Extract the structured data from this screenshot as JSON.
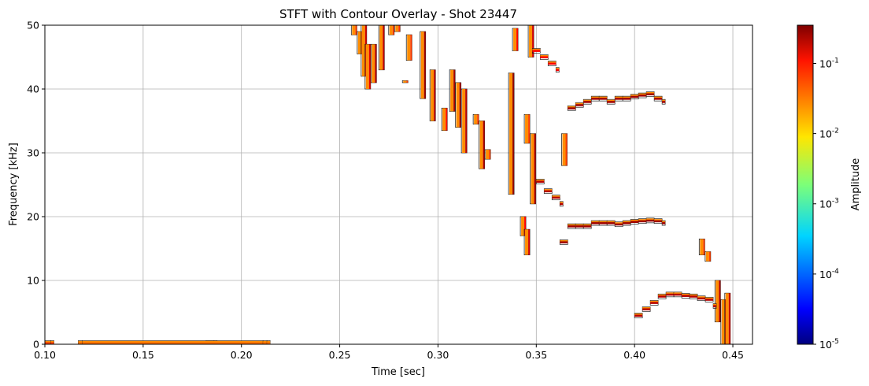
{
  "chart_data": {
    "type": "heatmap",
    "title": "STFT with Contour Overlay - Shot 23447",
    "xlabel": "Time [sec]",
    "ylabel": "Frequency [kHz]",
    "xlim": [
      0.1,
      0.46
    ],
    "ylim": [
      0,
      50
    ],
    "x_ticks": [
      0.1,
      0.15,
      0.2,
      0.25,
      0.3,
      0.35,
      0.4,
      0.45
    ],
    "x_tick_labels": [
      "0.10",
      "0.15",
      "0.20",
      "0.25",
      "0.30",
      "0.35",
      "0.40",
      "0.45"
    ],
    "y_ticks": [
      0,
      10,
      20,
      30,
      40,
      50
    ],
    "y_tick_labels": [
      "0",
      "10",
      "20",
      "30",
      "40",
      "50"
    ],
    "grid": true,
    "colormap": "jet",
    "color_scale": "log",
    "colorbar": {
      "label": "Amplitude",
      "range": [
        1e-05,
        0.35
      ],
      "ticks": [
        {
          "mantissa": "10",
          "exponent": "-1",
          "value": 0.1
        },
        {
          "mantissa": "10",
          "exponent": "-2",
          "value": 0.01
        },
        {
          "mantissa": "10",
          "exponent": "-3",
          "value": 0.001
        },
        {
          "mantissa": "10",
          "exponent": "-4",
          "value": 0.0001
        },
        {
          "mantissa": "10",
          "exponent": "-5",
          "value": 1e-05
        }
      ]
    },
    "features": [
      {
        "kind": "vertical",
        "t": 0.2575,
        "f0": 48.5,
        "f1": 50,
        "amp": 0.05
      },
      {
        "kind": "vertical",
        "t": 0.2605,
        "f0": 45.5,
        "f1": 49,
        "amp": 0.04
      },
      {
        "kind": "vertical",
        "t": 0.2625,
        "f0": 42,
        "f1": 50,
        "amp": 0.15
      },
      {
        "kind": "vertical",
        "t": 0.2645,
        "f0": 40,
        "f1": 47,
        "amp": 0.12
      },
      {
        "kind": "vertical",
        "t": 0.2675,
        "f0": 41,
        "f1": 47,
        "amp": 0.2
      },
      {
        "kind": "vertical",
        "t": 0.2715,
        "f0": 43,
        "f1": 50,
        "amp": 0.18
      },
      {
        "kind": "vertical",
        "t": 0.2765,
        "f0": 48.5,
        "f1": 50,
        "amp": 0.05
      },
      {
        "kind": "vertical",
        "t": 0.2795,
        "f0": 49,
        "f1": 50,
        "amp": 0.06
      },
      {
        "kind": "vertical",
        "t": 0.2835,
        "f0": 41,
        "f1": 41.3,
        "amp": 0.05
      },
      {
        "kind": "vertical",
        "t": 0.2855,
        "f0": 44.5,
        "f1": 48.5,
        "amp": 0.05
      },
      {
        "kind": "vertical",
        "t": 0.2925,
        "f0": 38.5,
        "f1": 49,
        "amp": 0.25
      },
      {
        "kind": "vertical",
        "t": 0.2975,
        "f0": 35,
        "f1": 43,
        "amp": 0.2
      },
      {
        "kind": "vertical",
        "t": 0.3035,
        "f0": 33.5,
        "f1": 37,
        "amp": 0.08
      },
      {
        "kind": "vertical",
        "t": 0.3075,
        "f0": 36.5,
        "f1": 43,
        "amp": 0.25
      },
      {
        "kind": "vertical",
        "t": 0.3105,
        "f0": 34,
        "f1": 41,
        "amp": 0.22
      },
      {
        "kind": "vertical",
        "t": 0.3135,
        "f0": 30,
        "f1": 40,
        "amp": 0.2
      },
      {
        "kind": "vertical",
        "t": 0.3195,
        "f0": 34.5,
        "f1": 36,
        "amp": 0.05
      },
      {
        "kind": "vertical",
        "t": 0.3225,
        "f0": 27.5,
        "f1": 35,
        "amp": 0.2
      },
      {
        "kind": "vertical",
        "t": 0.3255,
        "f0": 29,
        "f1": 30.5,
        "amp": 0.05
      },
      {
        "kind": "vertical",
        "t": 0.3375,
        "f0": 23.5,
        "f1": 42.5,
        "amp": 0.3
      },
      {
        "kind": "vertical",
        "t": 0.3395,
        "f0": 46,
        "f1": 49.5,
        "amp": 0.1
      },
      {
        "kind": "vertical",
        "t": 0.3455,
        "f0": 31.5,
        "f1": 36,
        "amp": 0.05
      },
      {
        "kind": "vertical",
        "t": 0.3485,
        "f0": 22,
        "f1": 33,
        "amp": 0.2
      },
      {
        "kind": "vertical",
        "t": 0.3475,
        "f0": 45,
        "f1": 50,
        "amp": 0.15
      },
      {
        "kind": "vertical",
        "t": 0.3435,
        "f0": 17,
        "f1": 20,
        "amp": 0.1
      },
      {
        "kind": "vertical",
        "t": 0.3455,
        "f0": 14,
        "f1": 18,
        "amp": 0.15
      },
      {
        "kind": "vertical",
        "t": 0.3645,
        "f0": 28,
        "f1": 33,
        "amp": 0.05
      },
      {
        "kind": "vertical",
        "t": 0.4345,
        "f0": 14,
        "f1": 16.5,
        "amp": 0.05
      },
      {
        "kind": "vertical",
        "t": 0.4375,
        "f0": 13,
        "f1": 14.5,
        "amp": 0.05
      },
      {
        "kind": "vertical",
        "t": 0.4425,
        "f0": 3.5,
        "f1": 10,
        "amp": 0.2
      },
      {
        "kind": "vertical",
        "t": 0.4455,
        "f0": 0,
        "f1": 7,
        "amp": 0.2
      },
      {
        "kind": "vertical",
        "t": 0.4475,
        "f0": 0,
        "f1": 8,
        "amp": 0.15
      },
      {
        "kind": "band",
        "t": [
          0.348,
          0.352,
          0.356,
          0.36
        ],
        "f": [
          46,
          45,
          44,
          43
        ],
        "amp": 0.1
      },
      {
        "kind": "band",
        "t": [
          0.366,
          0.37,
          0.374,
          0.378,
          0.382,
          0.386,
          0.39,
          0.394,
          0.398,
          0.402,
          0.406,
          0.41,
          0.414
        ],
        "f": [
          37,
          37.5,
          38,
          38.5,
          38.5,
          38,
          38.5,
          38.5,
          38.8,
          39,
          39.2,
          38.5,
          38
        ],
        "amp": 0.25
      },
      {
        "kind": "band",
        "t": [
          0.35,
          0.354,
          0.358,
          0.362
        ],
        "f": [
          25.5,
          24,
          23,
          22
        ],
        "amp": 0.2
      },
      {
        "kind": "band",
        "t": [
          0.362,
          0.366,
          0.37,
          0.374,
          0.378,
          0.382,
          0.386,
          0.39,
          0.394,
          0.398,
          0.402,
          0.406,
          0.41,
          0.414
        ],
        "f": [
          16,
          18.5,
          18.5,
          18.5,
          19,
          19,
          19,
          18.8,
          19,
          19.2,
          19.3,
          19.4,
          19.3,
          19
        ],
        "amp": 0.25
      },
      {
        "kind": "band",
        "t": [
          0.4,
          0.404,
          0.408,
          0.412,
          0.416,
          0.42,
          0.424,
          0.428,
          0.432,
          0.436,
          0.44
        ],
        "f": [
          4.5,
          5.5,
          6.5,
          7.5,
          7.8,
          7.8,
          7.6,
          7.5,
          7.2,
          7,
          6
        ],
        "amp": 0.2
      },
      {
        "kind": "band",
        "t": [
          0.1,
          0.103
        ],
        "f": [
          0.2,
          0.2
        ],
        "amp": 0.05
      },
      {
        "kind": "band",
        "t": [
          0.182,
          0.186
        ],
        "f": [
          0.2,
          0.2
        ],
        "amp": 0.03
      },
      {
        "kind": "band",
        "t": [
          0.117,
          0.119,
          0.211,
          0.213
        ],
        "f": [
          0.2,
          0.2,
          0.2,
          0.2
        ],
        "amp": 0.03
      }
    ]
  }
}
